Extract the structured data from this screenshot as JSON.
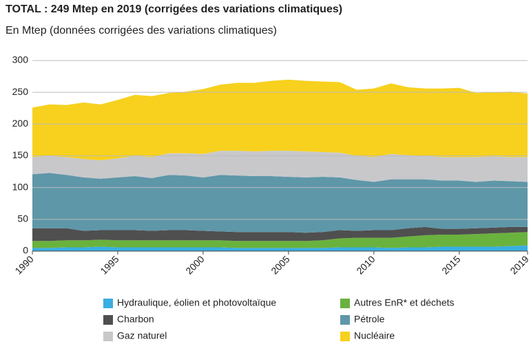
{
  "chart_data": {
    "type": "stacked_area",
    "title": "TOTAL : 249 Mtep en 2019 (corrigées des variations climatiques)",
    "subtitle": "En Mtep (données corrigées des variations climatiques)",
    "x": [
      1990,
      1991,
      1992,
      1993,
      1994,
      1995,
      1996,
      1997,
      1998,
      1999,
      2000,
      2001,
      2002,
      2003,
      2004,
      2005,
      2006,
      2007,
      2008,
      2009,
      2010,
      2011,
      2012,
      2013,
      2014,
      2015,
      2016,
      2017,
      2018,
      2019
    ],
    "series": [
      {
        "name": "Hydraulique, éolien et photovoltaïque",
        "color": "#3aaee0",
        "values": [
          5,
          5,
          6,
          6,
          7,
          6,
          6,
          6,
          6,
          6,
          6,
          6,
          5,
          5,
          5,
          5,
          5,
          5,
          6,
          6,
          6,
          5,
          6,
          6,
          7,
          7,
          7,
          7,
          8,
          9
        ]
      },
      {
        "name": "Autres EnR* et déchets",
        "color": "#6ab23e",
        "values": [
          11,
          11,
          11,
          11,
          11,
          11,
          11,
          11,
          11,
          11,
          11,
          11,
          11,
          11,
          11,
          11,
          11,
          12,
          14,
          15,
          15,
          16,
          17,
          19,
          19,
          19,
          20,
          21,
          21,
          21
        ]
      },
      {
        "name": "Charbon",
        "color": "#4f4f4f",
        "values": [
          20,
          20,
          19,
          15,
          15,
          16,
          16,
          15,
          16,
          16,
          15,
          14,
          14,
          14,
          14,
          14,
          13,
          13,
          13,
          11,
          12,
          12,
          13,
          13,
          9,
          9,
          9,
          9,
          9,
          8
        ]
      },
      {
        "name": "Pétrole",
        "color": "#5e97a8",
        "values": [
          85,
          87,
          84,
          84,
          81,
          83,
          85,
          83,
          87,
          86,
          84,
          89,
          89,
          88,
          88,
          87,
          87,
          87,
          83,
          80,
          76,
          80,
          77,
          75,
          76,
          76,
          73,
          74,
          72,
          71
        ]
      },
      {
        "name": "Gaz naturel",
        "color": "#c8c8cb",
        "values": [
          27,
          27,
          28,
          29,
          29,
          30,
          32,
          33,
          34,
          35,
          37,
          38,
          39,
          39,
          40,
          41,
          41,
          39,
          39,
          38,
          39,
          40,
          38,
          37,
          37,
          37,
          39,
          38,
          38,
          39
        ]
      },
      {
        "name": "Nucléaire",
        "color": "#f7d11e",
        "values": [
          78,
          81,
          82,
          89,
          88,
          92,
          96,
          96,
          95,
          97,
          102,
          104,
          107,
          108,
          110,
          112,
          111,
          111,
          111,
          104,
          108,
          111,
          107,
          106,
          108,
          109,
          101,
          101,
          103,
          100
        ]
      }
    ],
    "xlim": [
      1990,
      2019
    ],
    "xticks": [
      1990,
      1995,
      2000,
      2005,
      2010,
      2015,
      2019
    ],
    "ylim": [
      0,
      300
    ],
    "yticks": [
      0,
      50,
      100,
      150,
      200,
      250,
      300
    ],
    "grid": true
  }
}
